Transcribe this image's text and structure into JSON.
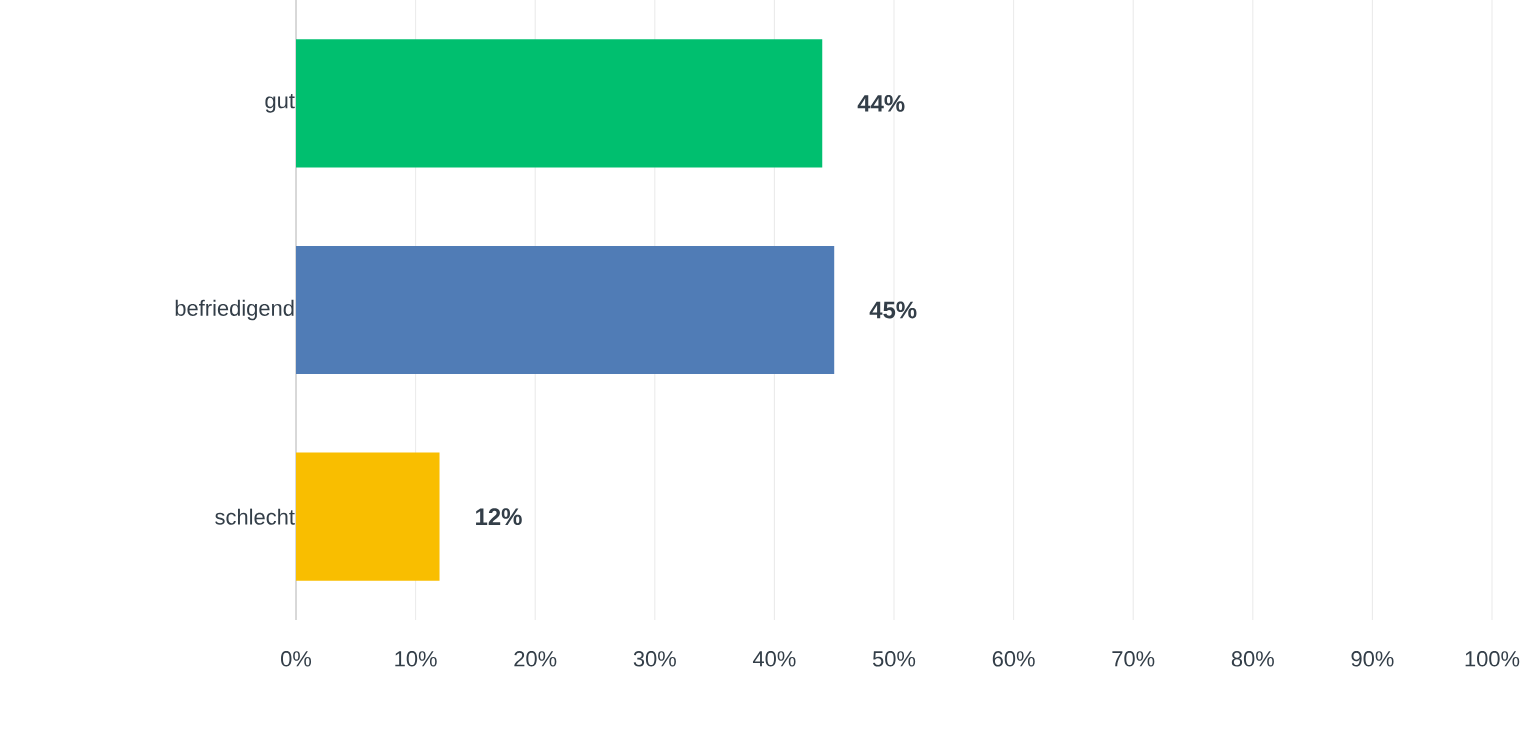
{
  "chart_data": {
    "type": "bar",
    "orientation": "horizontal",
    "categories": [
      "gut",
      "befriedigend",
      "schlecht"
    ],
    "values": [
      44,
      45,
      12
    ],
    "colors": [
      "#00bf6f",
      "#507cb6",
      "#f9be00"
    ],
    "value_labels": [
      "44%",
      "45%",
      "12%"
    ],
    "xlim": [
      0,
      100
    ],
    "xticks": [
      {
        "value": 0,
        "label": "0%"
      },
      {
        "value": 10,
        "label": "10%"
      },
      {
        "value": 20,
        "label": "20%"
      },
      {
        "value": 30,
        "label": "30%"
      },
      {
        "value": 40,
        "label": "40%"
      },
      {
        "value": 50,
        "label": "50%"
      },
      {
        "value": 60,
        "label": "60%"
      },
      {
        "value": 70,
        "label": "70%"
      },
      {
        "value": 80,
        "label": "80%"
      },
      {
        "value": 90,
        "label": "90%"
      },
      {
        "value": 100,
        "label": "100%"
      }
    ],
    "grid": "x"
  }
}
